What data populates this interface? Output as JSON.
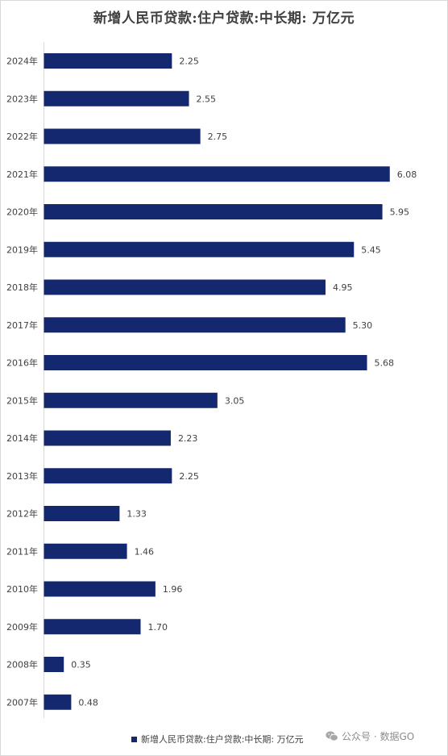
{
  "chart_data": {
    "type": "bar",
    "orientation": "horizontal",
    "title": "新增人民币贷款:住户贷款:中长期: 万亿元",
    "categories": [
      "2024年",
      "2023年",
      "2022年",
      "2021年",
      "2020年",
      "2019年",
      "2018年",
      "2017年",
      "2016年",
      "2015年",
      "2014年",
      "2013年",
      "2012年",
      "2011年",
      "2010年",
      "2009年",
      "2008年",
      "2007年"
    ],
    "series": [
      {
        "name": "新增人民币贷款:住户贷款:中长期: 万亿元",
        "values": [
          2.25,
          2.55,
          2.75,
          6.08,
          5.95,
          5.45,
          4.95,
          5.3,
          5.68,
          3.05,
          2.23,
          2.25,
          1.33,
          1.46,
          1.96,
          1.7,
          0.35,
          0.48
        ],
        "labels": [
          "2.25",
          "2.55",
          "2.75",
          "6.08",
          "5.95",
          "5.45",
          "4.95",
          "5.30",
          "5.68",
          "3.05",
          "2.23",
          "2.25",
          "1.33",
          "1.46",
          "1.96",
          "1.70",
          "0.35",
          "0.48"
        ],
        "color": "#13286f"
      }
    ],
    "xlim": [
      0,
      6.3
    ],
    "grid": false,
    "legend_position": "bottom"
  },
  "legend": {
    "label": "新增人民币贷款:住户贷款:中长期: 万亿元"
  },
  "watermark": {
    "text": "公众号 · 数据GO",
    "icon": "wechat-icon"
  }
}
